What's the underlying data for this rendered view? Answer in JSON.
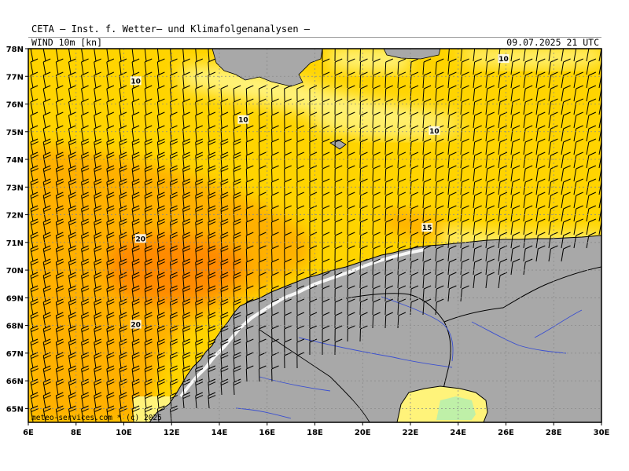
{
  "header": {
    "title": "CETA — Inst. f. Wetter— und Klimafolgenanalysen —",
    "parameter": "WIND 10m [kn]",
    "datetime": "09.07.2025 21 UTC"
  },
  "map": {
    "lon_range": [
      6,
      30
    ],
    "lat_range": [
      64.5,
      78
    ],
    "lon_ticks": [
      "6E",
      "8E",
      "10E",
      "12E",
      "14E",
      "16E",
      "18E",
      "20E",
      "22E",
      "24E",
      "26E",
      "28E",
      "30E"
    ],
    "lat_ticks": [
      "65N",
      "66N",
      "67N",
      "68N",
      "69N",
      "70N",
      "71N",
      "72N",
      "73N",
      "74N",
      "75N",
      "76N",
      "77N",
      "78N"
    ],
    "contour_labels": [
      {
        "text": "10",
        "lon": 10.5,
        "lat": 76.8
      },
      {
        "text": "10",
        "lon": 15.0,
        "lat": 75.4
      },
      {
        "text": "10",
        "lon": 23.0,
        "lat": 75.0
      },
      {
        "text": "10",
        "lon": 25.9,
        "lat": 77.6
      },
      {
        "text": "15",
        "lon": 22.7,
        "lat": 71.5
      },
      {
        "text": "20",
        "lon": 10.7,
        "lat": 71.1
      },
      {
        "text": "20",
        "lon": 10.5,
        "lat": 68.0
      }
    ],
    "colors": {
      "land": "#a8a8a8",
      "below_10kn": "#fff37a",
      "10_15kn": "#ffd400",
      "15_20kn": "#ffb000",
      "above_20kn": "#ff8a00",
      "calm_green": "#bff0a8",
      "coast": "#000000",
      "rivers": "#3a4fd0",
      "grid": "#8a8a8a"
    }
  },
  "footer": {
    "copyright": "meteo-services.com * (c) 2025"
  }
}
